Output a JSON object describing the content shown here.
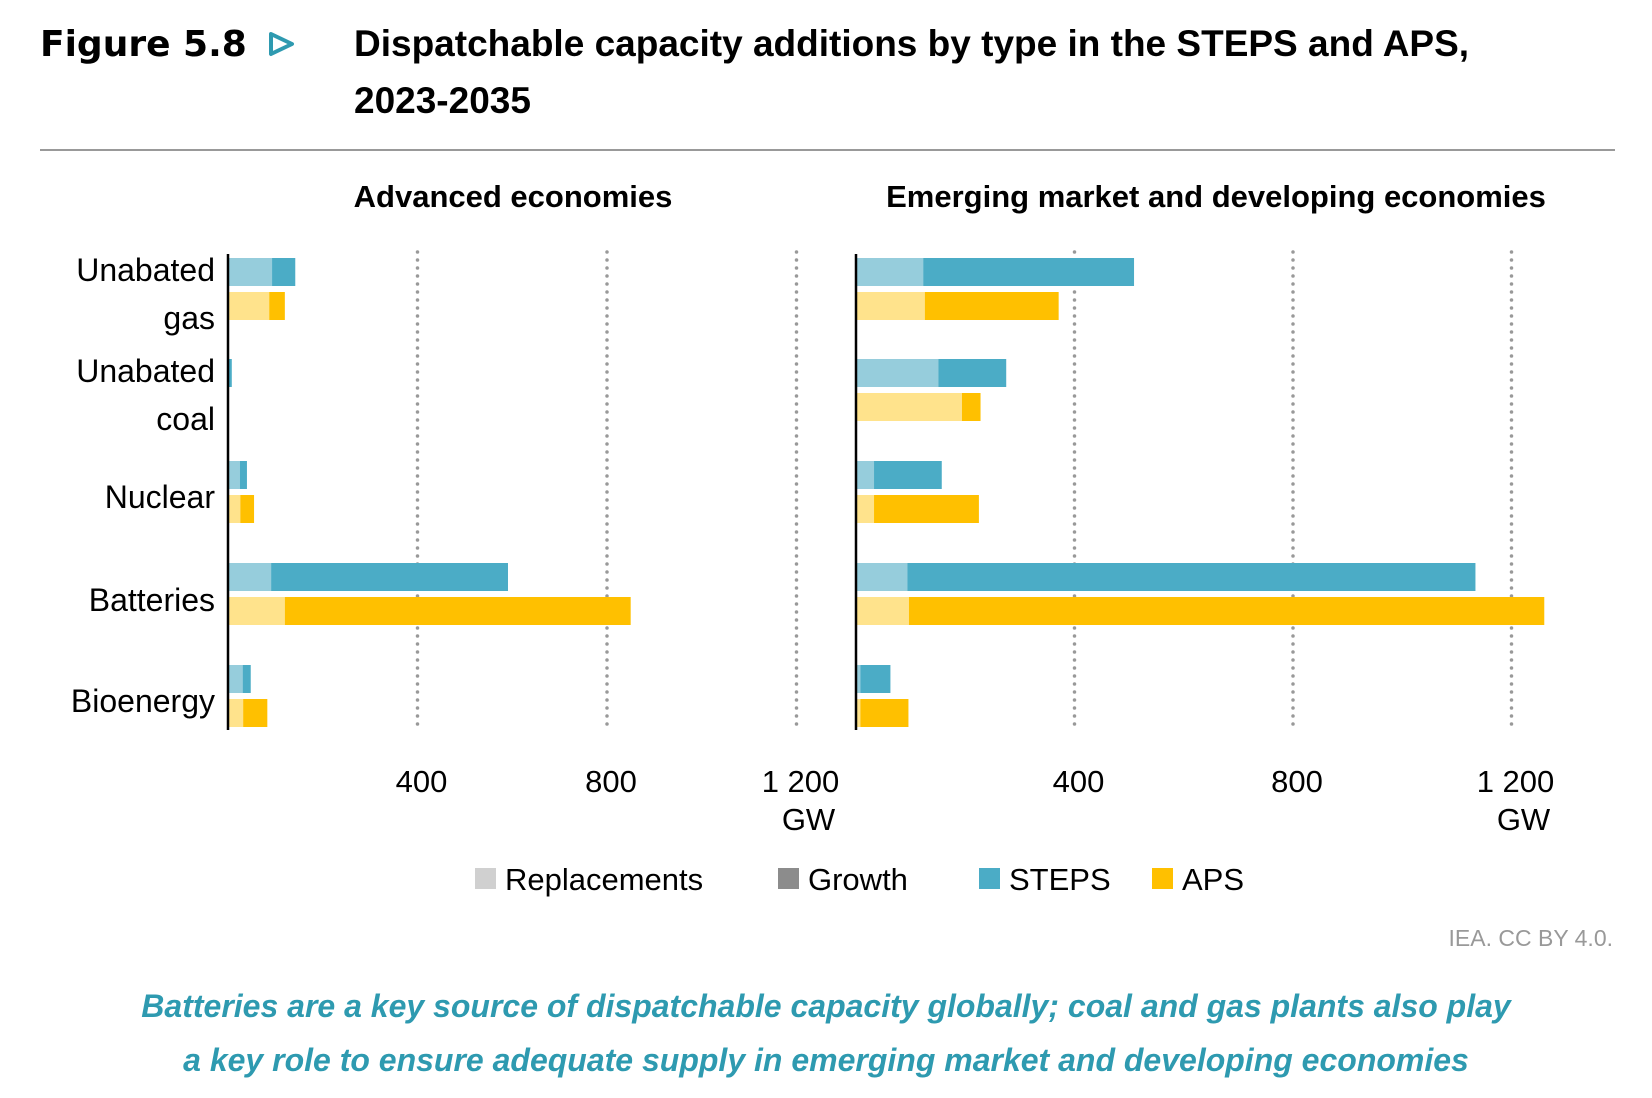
{
  "figure_label": "Figure 5.8",
  "title_line1": "Dispatchable capacity additions by type in the STEPS and APS,",
  "title_line2": "2023-2035",
  "source": "IEA. CC BY 4.0.",
  "caption_line1": "Batteries are a key source of dispatchable capacity globally; coal and gas plants also play",
  "caption_line2": "a key role to ensure adequate supply in emerging market and developing economies",
  "colors": {
    "steps": "#4BACC6",
    "steps_light": "#96CDDC",
    "aps": "#FFC000",
    "aps_light": "#FFE38C",
    "replacements": "#D0D0D0",
    "growth": "#8C8C8C",
    "accent": "#2E9AB0"
  },
  "chart_data": {
    "type": "bar",
    "orientation": "horizontal",
    "unit": "GW",
    "legend": {
      "position": "bottom",
      "entries": [
        "Replacements",
        "Growth",
        "STEPS",
        "APS"
      ]
    },
    "category_labels": [
      [
        "Unabated",
        "gas"
      ],
      [
        "Unabated",
        "coal"
      ],
      [
        "Nuclear"
      ],
      [
        "Batteries"
      ],
      [
        "Bioenergy"
      ]
    ],
    "categories": [
      "Unabated gas",
      "Unabated coal",
      "Nuclear",
      "Batteries",
      "Bioenergy"
    ],
    "xlim": [
      0,
      1200
    ],
    "ticks": [
      "400",
      "800",
      "1 200"
    ],
    "tick_values": [
      400,
      800,
      1200
    ],
    "axis_unit_label": "GW",
    "grid": "vertical dotted",
    "panels": [
      {
        "title": "Advanced economies",
        "series": [
          {
            "name": "STEPS",
            "replacements": [
              93,
              0,
              25,
              91,
              31
            ],
            "total": [
              142,
              8,
              40,
              591,
              48
            ]
          },
          {
            "name": "APS",
            "replacements": [
              87,
              0,
              26,
              120,
              32
            ],
            "total": [
              120,
              0,
              55,
              850,
              83
            ]
          }
        ]
      },
      {
        "title": "Emerging market and developing economies",
        "series": [
          {
            "name": "STEPS",
            "replacements": [
              123,
              151,
              33,
              94,
              8
            ],
            "total": [
              509,
              275,
              157,
              1134,
              63
            ]
          },
          {
            "name": "APS",
            "replacements": [
              126,
              194,
              33,
              97,
              8
            ],
            "total": [
              371,
              228,
              225,
              1260,
              96
            ]
          }
        ]
      }
    ]
  }
}
